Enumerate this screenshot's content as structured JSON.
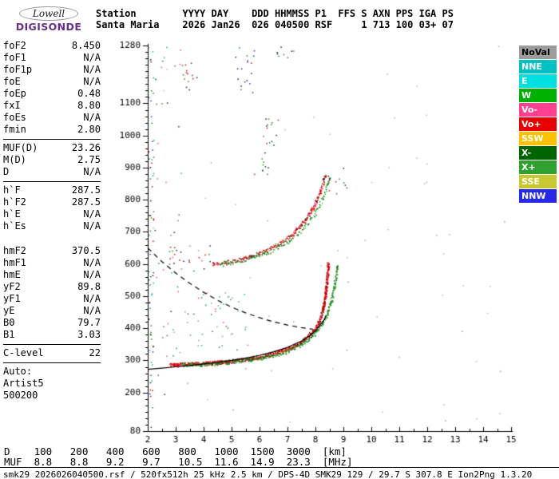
{
  "logo": {
    "line1": "Lowell",
    "line2": "DIGISONDE",
    "brand_color": "#6B2D8B"
  },
  "header": {
    "line1": "Station        YYYY DAY    DDD HHMMSS P1  FFS S AXN PPS IGA PS",
    "line2": "Santa Maria    2026 Jan26  026 040500 RSF     1 713 100 03+ 07"
  },
  "left_panel": {
    "rows": [
      {
        "label": "foF2",
        "value": "8.450"
      },
      {
        "label": "foF1",
        "value": "N/A"
      },
      {
        "label": "foF1p",
        "value": "N/A"
      },
      {
        "label": "foE",
        "value": "N/A"
      },
      {
        "label": "foEp",
        "value": "0.48"
      },
      {
        "label": "fxI",
        "value": "8.80"
      },
      {
        "label": "foEs",
        "value": "N/A"
      },
      {
        "label": "fmin",
        "value": "2.80",
        "sep_after": true
      },
      {
        "label": "MUF(D)",
        "value": "23.26"
      },
      {
        "label": "M(D)",
        "value": "2.75"
      },
      {
        "label": "D",
        "value": "N/A",
        "sep_after": true
      },
      {
        "label": "h`F",
        "value": "287.5"
      },
      {
        "label": "h`F2",
        "value": "287.5"
      },
      {
        "label": "h`E",
        "value": "N/A"
      },
      {
        "label": "h`Es",
        "value": "N/A",
        "gap_after": true
      },
      {
        "label": "hmF2",
        "value": "370.5"
      },
      {
        "label": "hmF1",
        "value": "N/A"
      },
      {
        "label": "hmE",
        "value": "N/A"
      },
      {
        "label": "yF2",
        "value": "89.8"
      },
      {
        "label": "yF1",
        "value": "N/A"
      },
      {
        "label": "yE",
        "value": "N/A"
      },
      {
        "label": "B0",
        "value": "79.7"
      },
      {
        "label": "B1",
        "value": "3.03",
        "sep_after": true
      },
      {
        "label": "C-level",
        "value": "22",
        "sep_after": true
      },
      {
        "label": "Auto:"
      },
      {
        "label": "Artist5"
      },
      {
        "label": "500200"
      }
    ]
  },
  "legend": {
    "items": [
      {
        "label": "NoVal",
        "color": "#9c9c9c",
        "text": "#000000"
      },
      {
        "label": "NNE",
        "color": "#00c0c0",
        "text": "#ffffff"
      },
      {
        "label": "E",
        "color": "#00e0e0",
        "text": "#ffffff"
      },
      {
        "label": "W",
        "color": "#00b000",
        "text": "#ffffff"
      },
      {
        "label": "Vo-",
        "color": "#ff4090",
        "text": "#ffffff"
      },
      {
        "label": "Vo+",
        "color": "#e80000",
        "text": "#ffffff"
      },
      {
        "label": "SSW",
        "color": "#ffc000",
        "text": "#ffffff"
      },
      {
        "label": "X-",
        "color": "#006400",
        "text": "#ffffff"
      },
      {
        "label": "X+",
        "color": "#30a030",
        "text": "#ffffff"
      },
      {
        "label": "SSE",
        "color": "#c8c832",
        "text": "#ffffff"
      },
      {
        "label": "NNW",
        "color": "#2828e8",
        "text": "#ffffff"
      }
    ]
  },
  "bottom_table": {
    "d_label": "D",
    "d_values": [
      "100",
      "200",
      "400",
      "600",
      "800",
      "1000",
      "1500",
      "3000"
    ],
    "d_unit": "[km]",
    "muf_label": "MUF",
    "muf_values": [
      "8.8",
      "8.8",
      "9.2",
      "9.7",
      "10.5",
      "11.6",
      "14.9",
      "23.3"
    ],
    "muf_unit": "[MHz]"
  },
  "footer": {
    "text": "smk29_2026026040500.rsf / 520fx512h 25 kHz 2.5 km / DPS-4D SMK29 129 / 29.7 S 307.8 E Ion2Png 1.3.20"
  },
  "chart_data": {
    "type": "scatter",
    "title": "",
    "xlabel": "",
    "ylabel": "",
    "x_unit": "MHz",
    "y_unit": "km",
    "xlim": [
      2,
      15
    ],
    "ylim": [
      80,
      1280
    ],
    "x_ticks": [
      2,
      3,
      4,
      5,
      6,
      7,
      8,
      9,
      10,
      11,
      12,
      13,
      14,
      15
    ],
    "y_tick_labels": [
      1280,
      1100,
      1000,
      900,
      800,
      700,
      600,
      500,
      400,
      300,
      200,
      80
    ],
    "y_minor_step": 20,
    "grid": false,
    "series": [
      {
        "name": "F2-ordinary-trace-hop1",
        "density": 4,
        "colors": [
          "#e00000",
          "#ff4090",
          "#a00000",
          "#202020"
        ],
        "points": [
          [
            2.8,
            287
          ],
          [
            3.0,
            288
          ],
          [
            3.5,
            290
          ],
          [
            4.0,
            292
          ],
          [
            4.5,
            295
          ],
          [
            5.0,
            299
          ],
          [
            5.5,
            304
          ],
          [
            6.0,
            312
          ],
          [
            6.5,
            322
          ],
          [
            7.0,
            336
          ],
          [
            7.4,
            354
          ],
          [
            7.7,
            374
          ],
          [
            8.0,
            402
          ],
          [
            8.15,
            428
          ],
          [
            8.25,
            458
          ],
          [
            8.33,
            495
          ],
          [
            8.39,
            540
          ],
          [
            8.43,
            580
          ],
          [
            8.45,
            605
          ]
        ]
      },
      {
        "name": "F2-extraordinary-trace-hop1",
        "density": 2,
        "colors": [
          "#1e8c1e",
          "#0a640a",
          "#46b446"
        ],
        "points": [
          [
            3.2,
            286
          ],
          [
            4.0,
            290
          ],
          [
            5.0,
            297
          ],
          [
            6.0,
            308
          ],
          [
            6.5,
            317
          ],
          [
            7.0,
            330
          ],
          [
            7.5,
            350
          ],
          [
            7.9,
            378
          ],
          [
            8.2,
            410
          ],
          [
            8.4,
            445
          ],
          [
            8.55,
            485
          ],
          [
            8.65,
            525
          ],
          [
            8.73,
            565
          ],
          [
            8.78,
            600
          ]
        ]
      },
      {
        "name": "F2-ordinary-trace-hop2",
        "density": 2,
        "colors": [
          "#e00000",
          "#ff4090",
          "#202020",
          "#1e8c1e"
        ],
        "points": [
          [
            4.3,
            600
          ],
          [
            4.8,
            606
          ],
          [
            5.3,
            615
          ],
          [
            5.8,
            628
          ],
          [
            6.3,
            646
          ],
          [
            6.8,
            670
          ],
          [
            7.2,
            698
          ],
          [
            7.6,
            735
          ],
          [
            7.9,
            775
          ],
          [
            8.1,
            812
          ],
          [
            8.25,
            850
          ],
          [
            8.35,
            882
          ]
        ]
      },
      {
        "name": "F2-extraordinary-trace-hop2",
        "density": 1,
        "colors": [
          "#1e8c1e",
          "#46b446",
          "#0a640a"
        ],
        "points": [
          [
            4.6,
            598
          ],
          [
            5.2,
            608
          ],
          [
            5.8,
            622
          ],
          [
            6.4,
            642
          ],
          [
            7.0,
            670
          ],
          [
            7.5,
            705
          ],
          [
            7.9,
            748
          ],
          [
            8.2,
            795
          ],
          [
            8.4,
            840
          ],
          [
            8.5,
            872
          ]
        ]
      }
    ],
    "overlay_lines": [
      {
        "name": "muf-transmission-curve",
        "style": "dashed",
        "color": "#000000",
        "points": [
          [
            2.0,
            650
          ],
          [
            2.5,
            608
          ],
          [
            3.0,
            572
          ],
          [
            3.5,
            540
          ],
          [
            4.0,
            512
          ],
          [
            4.5,
            487
          ],
          [
            5.0,
            466
          ],
          [
            5.5,
            448
          ],
          [
            6.0,
            433
          ],
          [
            6.5,
            420
          ],
          [
            7.0,
            410
          ],
          [
            7.5,
            402
          ],
          [
            7.9,
            397
          ]
        ]
      },
      {
        "name": "true-height-profile",
        "style": "solid",
        "color": "#000000",
        "points": [
          [
            2.0,
            272
          ],
          [
            2.5,
            276
          ],
          [
            3.0,
            280
          ],
          [
            3.5,
            284
          ],
          [
            4.0,
            289
          ],
          [
            4.5,
            294
          ],
          [
            5.0,
            300
          ],
          [
            5.5,
            307
          ],
          [
            6.0,
            316
          ],
          [
            6.5,
            327
          ],
          [
            7.0,
            341
          ],
          [
            7.5,
            360
          ],
          [
            7.8,
            377
          ],
          [
            8.0,
            392
          ],
          [
            8.15,
            408
          ],
          [
            8.3,
            425
          ],
          [
            8.38,
            438
          ]
        ]
      }
    ],
    "noise_clusters": [
      {
        "x": [
          2.0,
          2.2
        ],
        "y": [
          90,
          1280
        ],
        "n": 70,
        "colors": [
          "#1e8c1e",
          "#00b4b4",
          "#e00000",
          "#202020",
          "#2828ff"
        ]
      },
      {
        "x": [
          2.2,
          3.2
        ],
        "y": [
          150,
          1280
        ],
        "n": 40,
        "colors": [
          "#1e8c1e",
          "#ff4090",
          "#00b4b4",
          "#202020"
        ]
      },
      {
        "x": [
          3.3,
          5.6
        ],
        "y": [
          330,
          520
        ],
        "n": 45,
        "colors": [
          "#999999",
          "#ff4090",
          "#1e8c1e",
          "#00b4b4"
        ]
      },
      {
        "x": [
          3.2,
          3.8
        ],
        "y": [
          1140,
          1240
        ],
        "n": 14,
        "colors": [
          "#202020",
          "#1e8c1e",
          "#e00000"
        ]
      },
      {
        "x": [
          5.1,
          5.8
        ],
        "y": [
          1130,
          1275
        ],
        "n": 18,
        "colors": [
          "#202020",
          "#1e8c1e",
          "#2828ff",
          "#e00000"
        ]
      },
      {
        "x": [
          6.1,
          6.7
        ],
        "y": [
          970,
          1070
        ],
        "n": 14,
        "colors": [
          "#202020",
          "#1e8c1e",
          "#e00000"
        ]
      },
      {
        "x": [
          5.7,
          6.3
        ],
        "y": [
          880,
          960
        ],
        "n": 10,
        "colors": [
          "#1e8c1e",
          "#e00000",
          "#202020"
        ]
      },
      {
        "x": [
          2.6,
          4.4
        ],
        "y": [
          580,
          660
        ],
        "n": 25,
        "colors": [
          "#e00000",
          "#ff4090",
          "#1e8c1e",
          "#202020"
        ]
      },
      {
        "x": [
          6.6,
          7.2
        ],
        "y": [
          1240,
          1280
        ],
        "n": 8,
        "colors": [
          "#202020",
          "#1e8c1e"
        ]
      },
      {
        "x": [
          8.4,
          9.2
        ],
        "y": [
          820,
          900
        ],
        "n": 12,
        "colors": [
          "#1e8c1e",
          "#202020",
          "#e00000"
        ]
      },
      {
        "x": [
          2.0,
          15.0
        ],
        "y": [
          80,
          1280
        ],
        "n": 60,
        "colors": [
          "#bbbbbb",
          "#99cc99",
          "#cc99bb",
          "#9999cc"
        ]
      }
    ]
  }
}
